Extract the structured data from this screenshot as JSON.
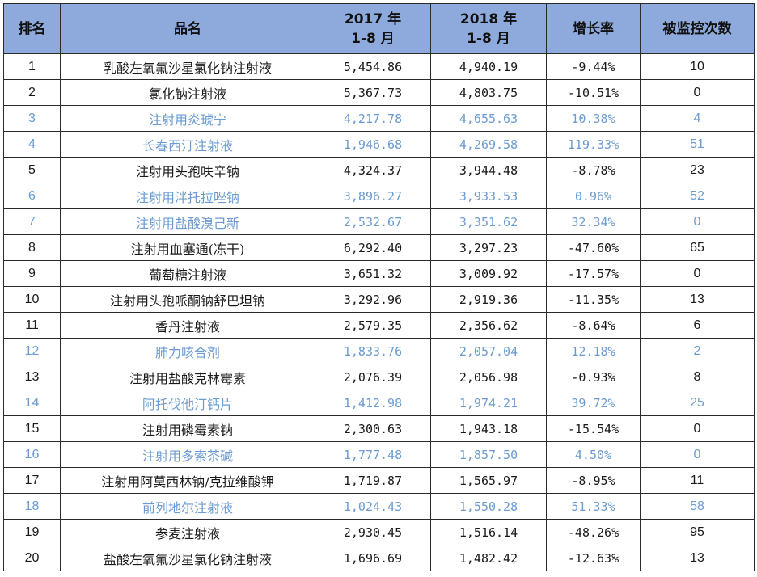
{
  "headers": {
    "rank": "排名",
    "name": "品名",
    "y2017_line1": "2017 年",
    "y2017_line2": "1-8 月",
    "y2018_line1": "2018 年",
    "y2018_line2": "1-8 月",
    "growth": "增长率",
    "monitored": "被监控次数"
  },
  "colors": {
    "header_bg": "#8eaadc",
    "highlight_text": "#6b9bd1",
    "normal_text": "#1a1a1a"
  },
  "rows": [
    {
      "rank": "1",
      "name": "乳酸左氧氟沙星氯化钠注射液",
      "y2017": "5,454.86",
      "y2018": "4,940.19",
      "growth": "-9.44%",
      "monitored": "10",
      "highlight": false
    },
    {
      "rank": "2",
      "name": "氯化钠注射液",
      "y2017": "5,367.73",
      "y2018": "4,803.75",
      "growth": "-10.51%",
      "monitored": "0",
      "highlight": false
    },
    {
      "rank": "3",
      "name": "注射用炎琥宁",
      "y2017": "4,217.78",
      "y2018": "4,655.63",
      "growth": "10.38%",
      "monitored": "4",
      "highlight": true
    },
    {
      "rank": "4",
      "name": "长春西汀注射液",
      "y2017": "1,946.68",
      "y2018": "4,269.58",
      "growth": "119.33%",
      "monitored": "51",
      "highlight": true
    },
    {
      "rank": "5",
      "name": "注射用头孢呋辛钠",
      "y2017": "4,324.37",
      "y2018": "3,944.48",
      "growth": "-8.78%",
      "monitored": "23",
      "highlight": false
    },
    {
      "rank": "6",
      "name": "注射用泮托拉唑钠",
      "y2017": "3,896.27",
      "y2018": "3,933.53",
      "growth": "0.96%",
      "monitored": "52",
      "highlight": true
    },
    {
      "rank": "7",
      "name": "注射用盐酸溴己新",
      "y2017": "2,532.67",
      "y2018": "3,351.62",
      "growth": "32.34%",
      "monitored": "0",
      "highlight": true
    },
    {
      "rank": "8",
      "name": "注射用血塞通(冻干)",
      "y2017": "6,292.40",
      "y2018": "3,297.23",
      "growth": "-47.60%",
      "monitored": "65",
      "highlight": false
    },
    {
      "rank": "9",
      "name": "葡萄糖注射液",
      "y2017": "3,651.32",
      "y2018": "3,009.92",
      "growth": "-17.57%",
      "monitored": "0",
      "highlight": false
    },
    {
      "rank": "10",
      "name": "注射用头孢哌酮钠舒巴坦钠",
      "y2017": "3,292.96",
      "y2018": "2,919.36",
      "growth": "-11.35%",
      "monitored": "13",
      "highlight": false
    },
    {
      "rank": "11",
      "name": "香丹注射液",
      "y2017": "2,579.35",
      "y2018": "2,356.62",
      "growth": "-8.64%",
      "monitored": "6",
      "highlight": false
    },
    {
      "rank": "12",
      "name": "肺力咳合剂",
      "y2017": "1,833.76",
      "y2018": "2,057.04",
      "growth": "12.18%",
      "monitored": "2",
      "highlight": true
    },
    {
      "rank": "13",
      "name": "注射用盐酸克林霉素",
      "y2017": "2,076.39",
      "y2018": "2,056.98",
      "growth": "-0.93%",
      "monitored": "8",
      "highlight": false
    },
    {
      "rank": "14",
      "name": "阿托伐他汀钙片",
      "y2017": "1,412.98",
      "y2018": "1,974.21",
      "growth": "39.72%",
      "monitored": "25",
      "highlight": true
    },
    {
      "rank": "15",
      "name": "注射用磷霉素钠",
      "y2017": "2,300.63",
      "y2018": "1,943.18",
      "growth": "-15.54%",
      "monitored": "0",
      "highlight": false
    },
    {
      "rank": "16",
      "name": "注射用多索茶碱",
      "y2017": "1,777.48",
      "y2018": "1,857.50",
      "growth": "4.50%",
      "monitored": "0",
      "highlight": true
    },
    {
      "rank": "17",
      "name": "注射用阿莫西林钠/克拉维酸钾",
      "y2017": "1,719.87",
      "y2018": "1,565.97",
      "growth": "-8.95%",
      "monitored": "11",
      "highlight": false
    },
    {
      "rank": "18",
      "name": "前列地尔注射液",
      "y2017": "1,024.43",
      "y2018": "1,550.28",
      "growth": "51.33%",
      "monitored": "58",
      "highlight": true
    },
    {
      "rank": "19",
      "name": "参麦注射液",
      "y2017": "2,930.45",
      "y2018": "1,516.14",
      "growth": "-48.26%",
      "monitored": "95",
      "highlight": false
    },
    {
      "rank": "20",
      "name": "盐酸左氧氟沙星氯化钠注射液",
      "y2017": "1,696.69",
      "y2018": "1,482.42",
      "growth": "-12.63%",
      "monitored": "13",
      "highlight": false
    }
  ]
}
